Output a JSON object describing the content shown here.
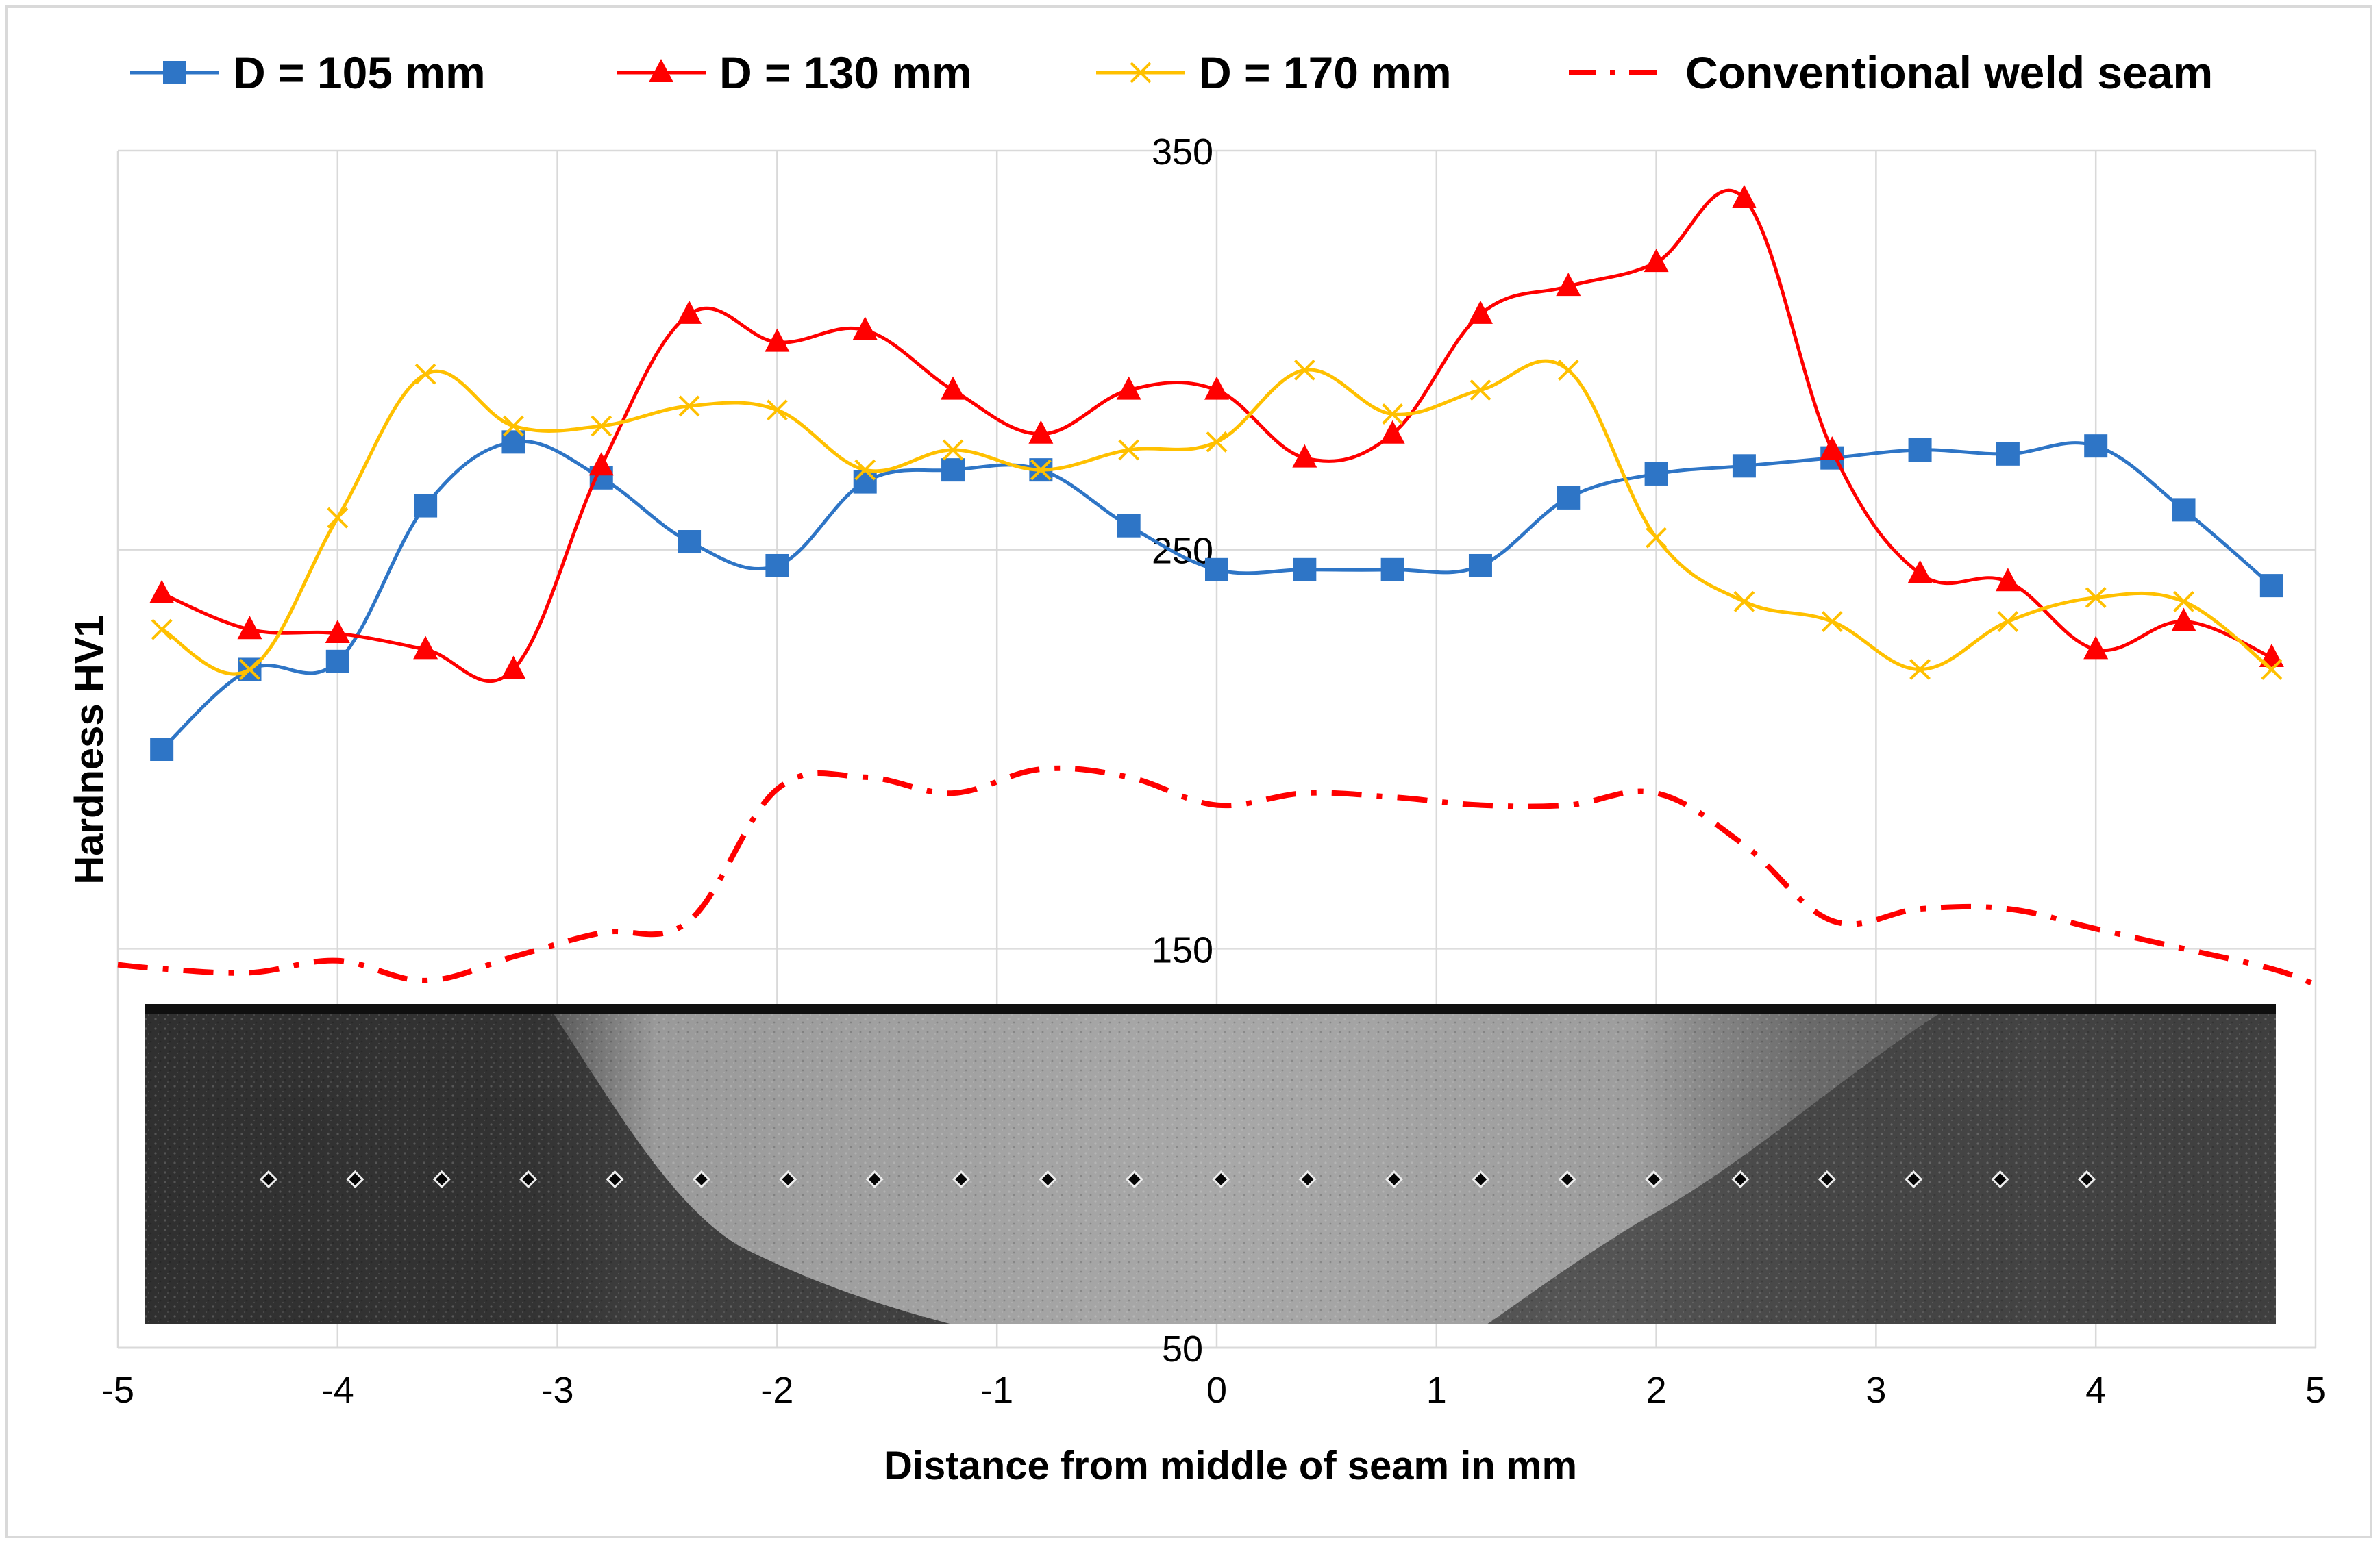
{
  "chart_data": {
    "type": "line",
    "title": "",
    "xlabel": "Distance from middle of seam in mm",
    "ylabel": "Hardness HV1",
    "xlim": [
      -5,
      5
    ],
    "ylim": [
      50,
      350
    ],
    "x_ticks": [
      -5,
      -4,
      -3,
      -2,
      -1,
      0,
      1,
      2,
      3,
      4,
      5
    ],
    "x_tick_labels": [
      "-5",
      "-4",
      "-3",
      "-2",
      "-1",
      "0",
      "1",
      "2",
      "3",
      "4",
      "5"
    ],
    "y_ticks": [
      50,
      150,
      250,
      350
    ],
    "y_tick_labels": [
      "50",
      "150",
      "250",
      "350"
    ],
    "grid": "vertical",
    "legend_position": "top",
    "series": [
      {
        "name": "D = 105 mm",
        "color": "#2e75c6",
        "marker": "square",
        "line_style": "solid",
        "x": [
          -4.8,
          -4.4,
          -4.0,
          -3.6,
          -3.2,
          -2.8,
          -2.4,
          -2.0,
          -1.6,
          -1.2,
          -0.8,
          -0.4,
          0.0,
          0.4,
          0.8,
          1.2,
          1.6,
          2.0,
          2.4,
          2.8,
          3.2,
          3.6,
          4.0,
          4.4,
          4.8
        ],
        "values": [
          200,
          220,
          222,
          261,
          277,
          268,
          252,
          246,
          267,
          270,
          270,
          256,
          245,
          245,
          245,
          246,
          263,
          269,
          271,
          273,
          275,
          274,
          276,
          260,
          241
        ]
      },
      {
        "name": "D = 130 mm",
        "color": "#ff0000",
        "marker": "triangle",
        "line_style": "solid",
        "x": [
          -4.8,
          -4.4,
          -4.0,
          -3.6,
          -3.2,
          -2.8,
          -2.4,
          -2.0,
          -1.6,
          -1.2,
          -0.8,
          -0.4,
          0.0,
          0.4,
          0.8,
          1.2,
          1.6,
          2.0,
          2.4,
          2.8,
          3.2,
          3.6,
          4.0,
          4.4,
          4.8
        ],
        "values": [
          239,
          230,
          229,
          225,
          220,
          271,
          309,
          302,
          305,
          290,
          279,
          290,
          290,
          273,
          279,
          309,
          316,
          322,
          338,
          275,
          244,
          242,
          225,
          232,
          223
        ]
      },
      {
        "name": "D = 170 mm",
        "color": "#ffc000",
        "marker": "x",
        "line_style": "solid",
        "x": [
          -4.8,
          -4.4,
          -4.0,
          -3.6,
          -3.2,
          -2.8,
          -2.4,
          -2.0,
          -1.6,
          -1.2,
          -0.8,
          -0.4,
          0.0,
          0.4,
          0.8,
          1.2,
          1.6,
          2.0,
          2.4,
          2.8,
          3.2,
          3.6,
          4.0,
          4.4,
          4.8
        ],
        "values": [
          230,
          220,
          258,
          294,
          281,
          281,
          286,
          285,
          270,
          275,
          270,
          275,
          277,
          295,
          284,
          290,
          295,
          253,
          237,
          232,
          220,
          232,
          238,
          237,
          220
        ]
      },
      {
        "name": "Conventional weld seam",
        "color": "#ff0000",
        "marker": "none",
        "line_style": "dash-dot",
        "x": [
          -5.0,
          -4.8,
          -4.4,
          -4.0,
          -3.6,
          -3.2,
          -2.8,
          -2.4,
          -2.0,
          -1.6,
          -1.2,
          -0.8,
          -0.4,
          0.0,
          0.4,
          0.8,
          1.2,
          1.6,
          2.0,
          2.4,
          2.8,
          3.2,
          3.6,
          4.0,
          4.4,
          4.8,
          5.0
        ],
        "values": [
          146,
          145,
          144,
          147,
          142,
          148,
          154,
          157,
          190,
          193,
          189,
          195,
          193,
          186,
          189,
          188,
          186,
          186,
          189,
          176,
          157,
          160,
          160,
          155,
          150,
          145,
          141
        ]
      }
    ]
  },
  "micrograph": {
    "caption_icon": "weld-cross-section-micrograph",
    "indent_count": 22
  }
}
